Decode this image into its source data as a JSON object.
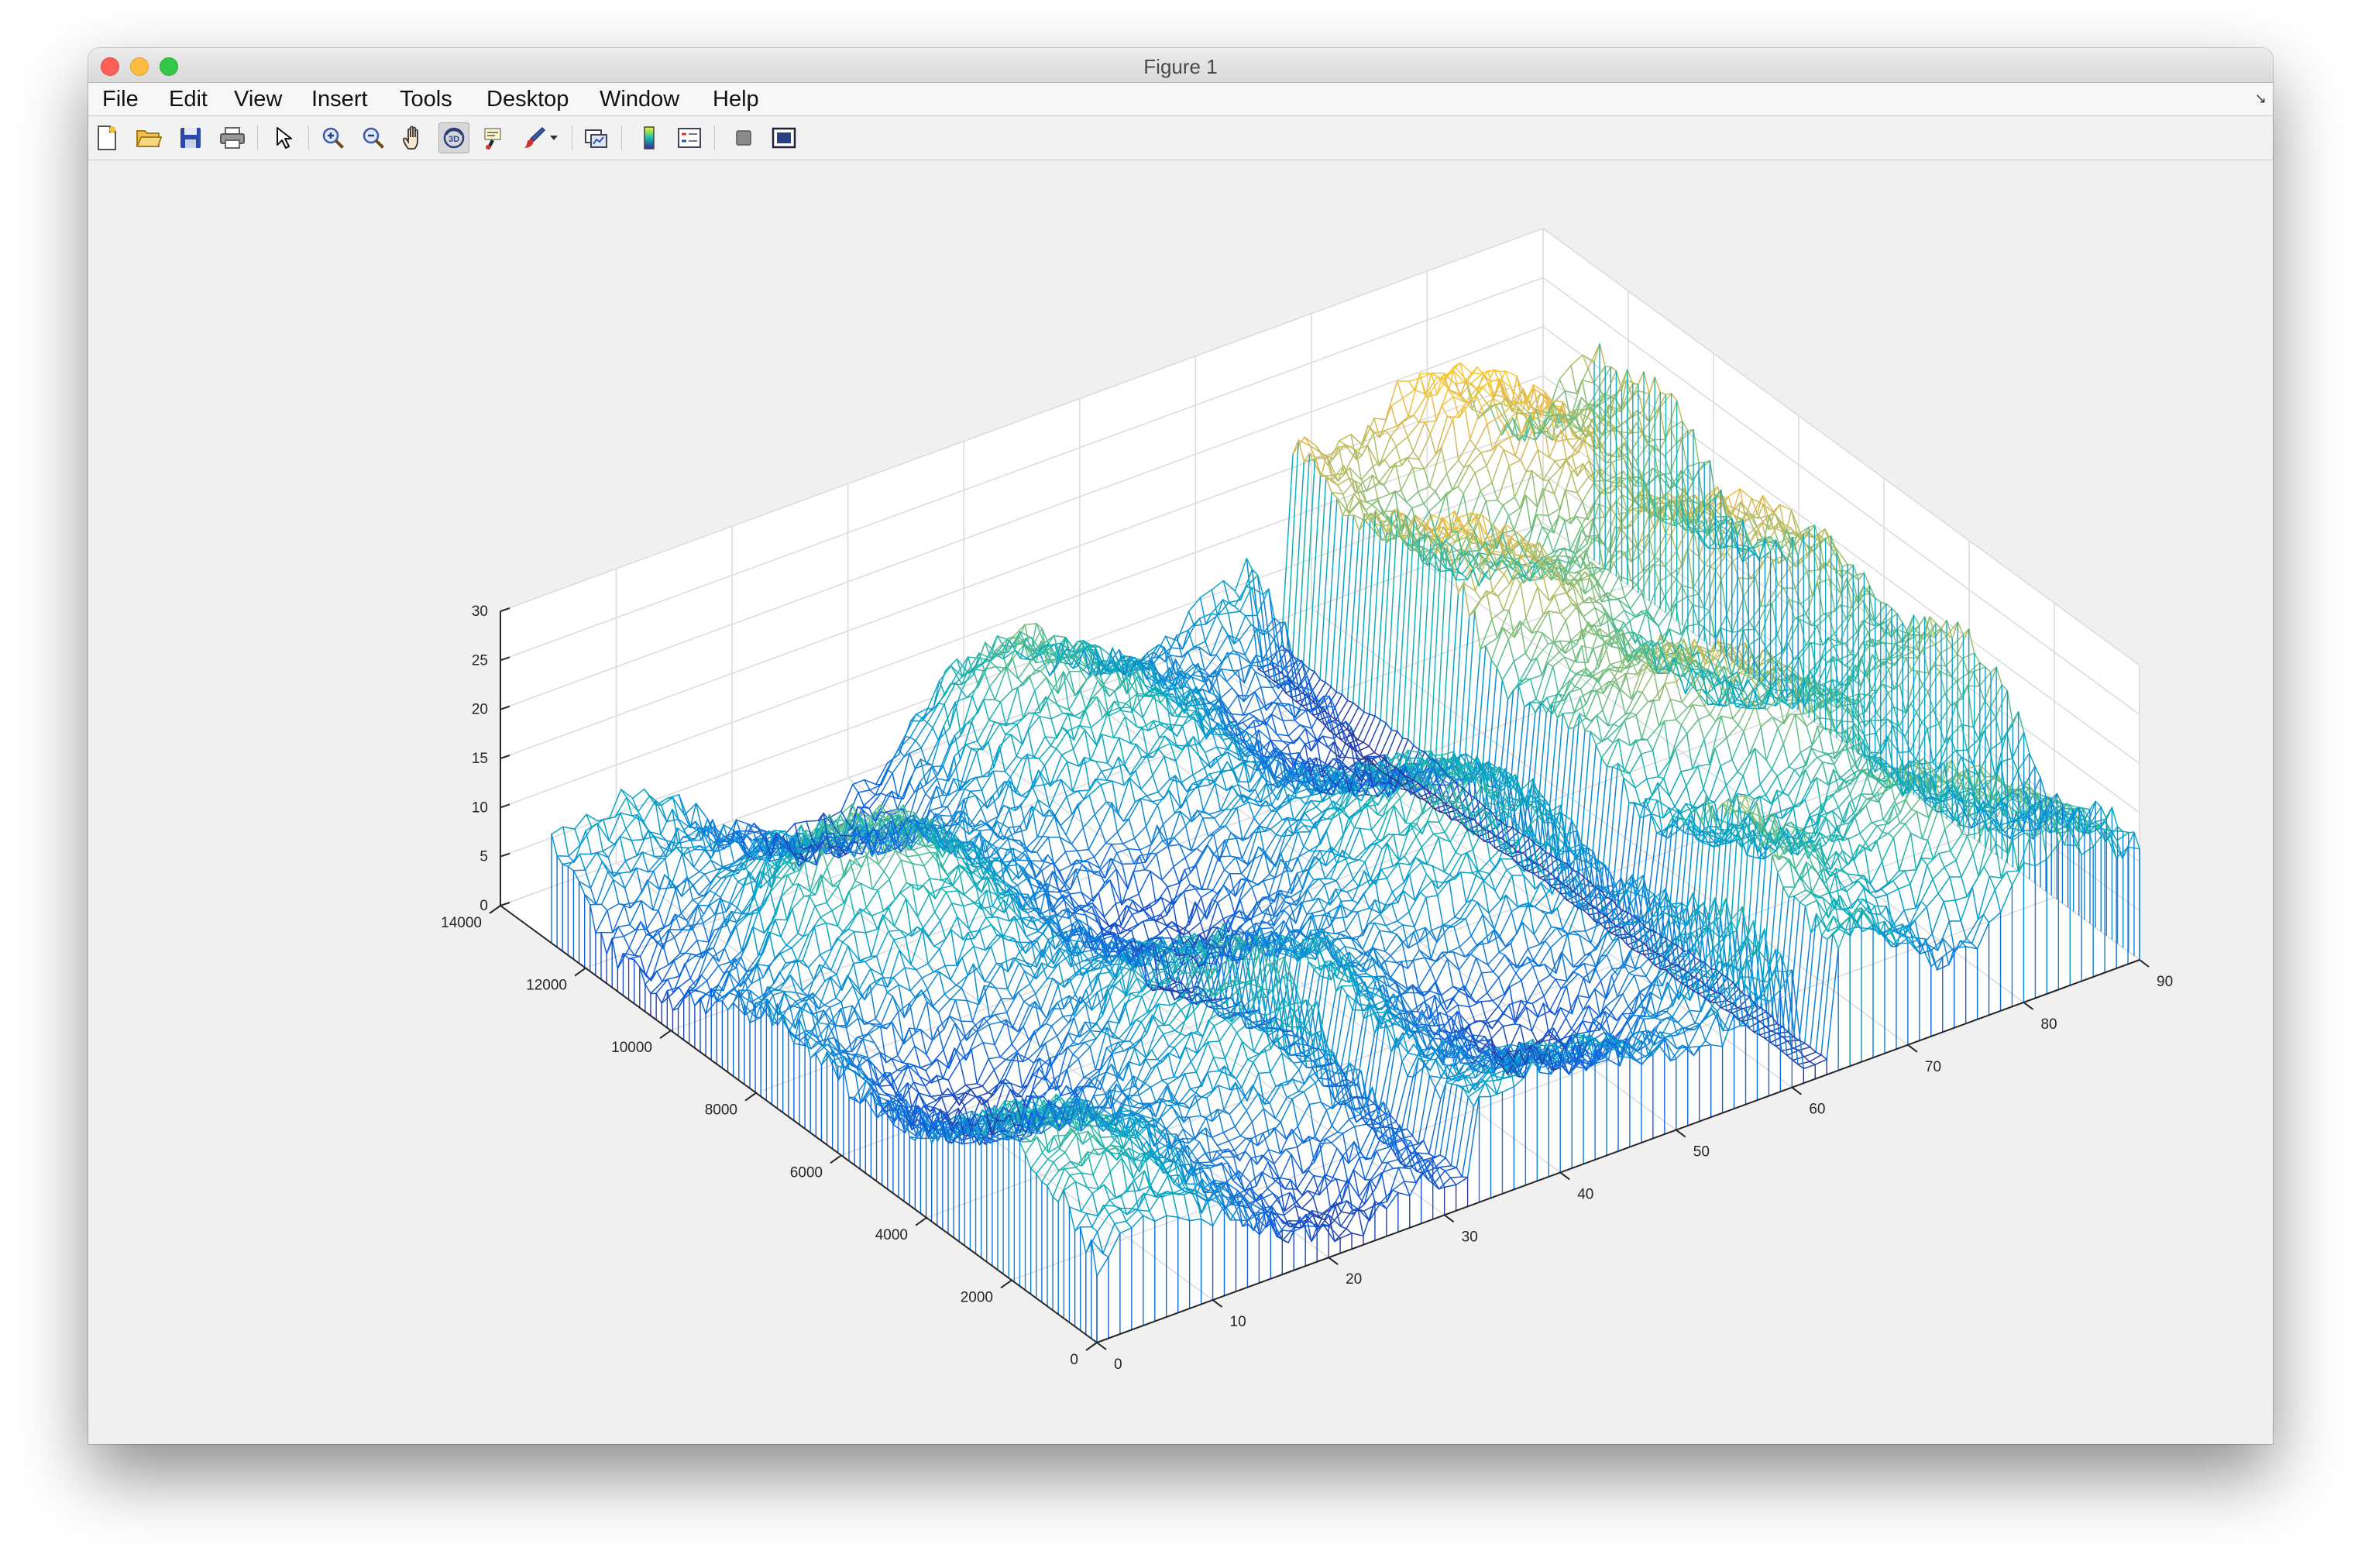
{
  "window": {
    "title": "Figure 1"
  },
  "menu": {
    "items": [
      {
        "id": "file",
        "label": "File"
      },
      {
        "id": "edit",
        "label": "Edit"
      },
      {
        "id": "view",
        "label": "View"
      },
      {
        "id": "insert",
        "label": "Insert"
      },
      {
        "id": "tools",
        "label": "Tools"
      },
      {
        "id": "desktop",
        "label": "Desktop"
      },
      {
        "id": "window",
        "label": "Window"
      },
      {
        "id": "help",
        "label": "Help"
      }
    ]
  },
  "toolbar": {
    "buttons": [
      {
        "id": "new-figure",
        "icon": "new-file-icon"
      },
      {
        "id": "open-file",
        "icon": "open-folder-icon"
      },
      {
        "id": "save-figure",
        "icon": "save-disk-icon"
      },
      {
        "id": "print-figure",
        "icon": "printer-icon"
      },
      {
        "id": "edit-plot",
        "icon": "arrow-pointer-icon"
      },
      {
        "id": "zoom-in",
        "icon": "zoom-in-icon"
      },
      {
        "id": "zoom-out",
        "icon": "zoom-out-icon"
      },
      {
        "id": "pan",
        "icon": "hand-icon"
      },
      {
        "id": "rotate-3d",
        "icon": "rotate-3d-icon",
        "active": true
      },
      {
        "id": "data-cursor",
        "icon": "data-cursor-icon"
      },
      {
        "id": "brush",
        "icon": "brush-icon"
      },
      {
        "id": "link-plot",
        "icon": "link-plot-icon"
      },
      {
        "id": "insert-colorbar",
        "icon": "colorbar-icon"
      },
      {
        "id": "insert-legend",
        "icon": "legend-icon"
      },
      {
        "id": "hide-plot-tools",
        "icon": "hide-tools-icon"
      },
      {
        "id": "show-plot-tools",
        "icon": "show-tools-icon"
      }
    ]
  },
  "chart_data": {
    "type": "mesh",
    "colormap": "parula",
    "grid": true,
    "x_axis": {
      "range": [
        0,
        90
      ],
      "ticks": [
        0,
        10,
        20,
        30,
        40,
        50,
        60,
        70,
        80,
        90
      ]
    },
    "y_axis": {
      "range": [
        0,
        14000
      ],
      "ticks": [
        0,
        2000,
        4000,
        6000,
        8000,
        10000,
        12000,
        14000
      ]
    },
    "z_axis": {
      "range": [
        0,
        30
      ],
      "ticks": [
        0,
        5,
        10,
        15,
        20,
        25,
        30
      ]
    },
    "surface_summary": {
      "x_extent": [
        0,
        90
      ],
      "y_extent": [
        0,
        12800
      ],
      "z_extent": [
        0,
        27
      ],
      "features": [
        {
          "x": 62,
          "note": "deep trench along y"
        },
        {
          "x": 31,
          "y_extent": [
            0,
            7000
          ],
          "note": "narrow channel"
        }
      ]
    }
  }
}
